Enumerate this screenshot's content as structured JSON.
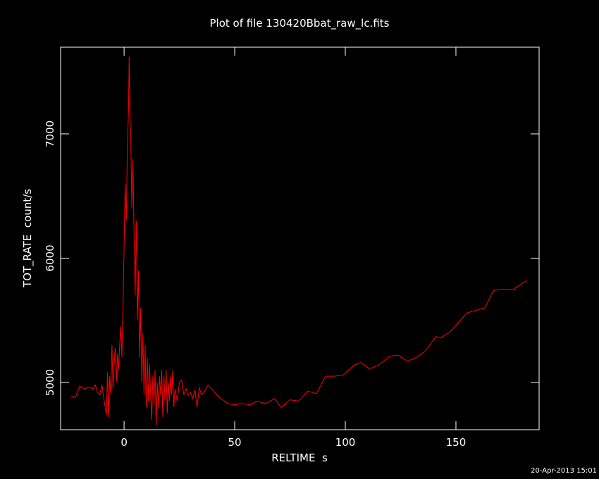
{
  "chart_data": {
    "type": "line",
    "title": "Plot of file 130420Bbat_raw_lc.fits",
    "x_label": "RELTIME  s",
    "y_label": "TOT_RATE  count/s",
    "annotation": "20-Apr-2013 15:01",
    "color": "#ff0000",
    "xlim": [
      -28.7,
      187.6
    ],
    "ylim": [
      4620,
      7697
    ],
    "xticks": [
      0,
      50,
      100,
      150
    ],
    "yticks": [
      5000,
      6000,
      7000
    ],
    "x": [
      -24,
      -22,
      -20,
      -18,
      -16,
      -14,
      -13,
      -12,
      -11,
      -10,
      -9,
      -8,
      -7.5,
      -7,
      -6.5,
      -6,
      -5.5,
      -5,
      -4.5,
      -4,
      -3.5,
      -3,
      -2.5,
      -2,
      -1.5,
      -1,
      -0.5,
      0,
      0.5,
      1,
      1.5,
      2,
      2.3,
      2.7,
      3,
      3.5,
      4,
      4.5,
      5,
      5.5,
      6,
      6.5,
      7,
      7.5,
      8,
      8.5,
      9,
      9.5,
      10,
      10.5,
      11,
      11.5,
      12,
      12.5,
      13,
      13.5,
      14,
      14.5,
      15,
      15.5,
      16,
      16.5,
      17,
      17.5,
      18,
      18.5,
      19,
      19.5,
      20,
      20.5,
      21,
      21.5,
      22,
      22.5,
      23,
      24,
      25,
      26,
      27,
      28,
      29,
      30,
      31,
      32,
      33,
      34,
      35,
      36,
      38,
      40,
      43,
      47,
      50,
      53,
      57,
      60,
      64,
      68,
      71,
      75,
      79,
      83,
      87,
      91,
      95,
      99,
      104,
      107,
      111,
      115,
      120,
      124,
      128,
      132,
      136,
      141,
      143,
      147,
      151,
      155,
      159,
      163,
      167,
      171,
      176,
      182
    ],
    "values": [
      4890,
      4880,
      4970,
      4950,
      4960,
      4950,
      4980,
      4920,
      4900,
      4980,
      4850,
      4740,
      5080,
      4720,
      5050,
      4900,
      5300,
      4950,
      5150,
      5280,
      5000,
      5230,
      5100,
      5300,
      5450,
      5200,
      5600,
      6100,
      6600,
      6300,
      6900,
      7200,
      7620,
      7100,
      7000,
      6400,
      6800,
      6200,
      5700,
      6300,
      5500,
      5900,
      5200,
      5600,
      5000,
      5400,
      4900,
      5300,
      4800,
      5200,
      4850,
      5150,
      4900,
      4700,
      5050,
      4820,
      5100,
      4650,
      5000,
      4800,
      5050,
      4900,
      5100,
      4720,
      5050,
      4850,
      5100,
      4750,
      5000,
      4850,
      5050,
      4900,
      5100,
      4800,
      4950,
      4850,
      5000,
      5020,
      4900,
      4950,
      4900,
      4920,
      4870,
      4940,
      4800,
      4960,
      4900,
      4920,
      4980,
      4940,
      4880,
      4830,
      4820,
      4830,
      4820,
      4850,
      4830,
      4870,
      4800,
      4860,
      4850,
      4930,
      4910,
      5050,
      5050,
      5060,
      5140,
      5160,
      5110,
      5140,
      5210,
      5220,
      5170,
      5200,
      5250,
      5370,
      5360,
      5400,
      5480,
      5560,
      5580,
      5600,
      5740,
      5750,
      5750,
      5820
    ]
  }
}
